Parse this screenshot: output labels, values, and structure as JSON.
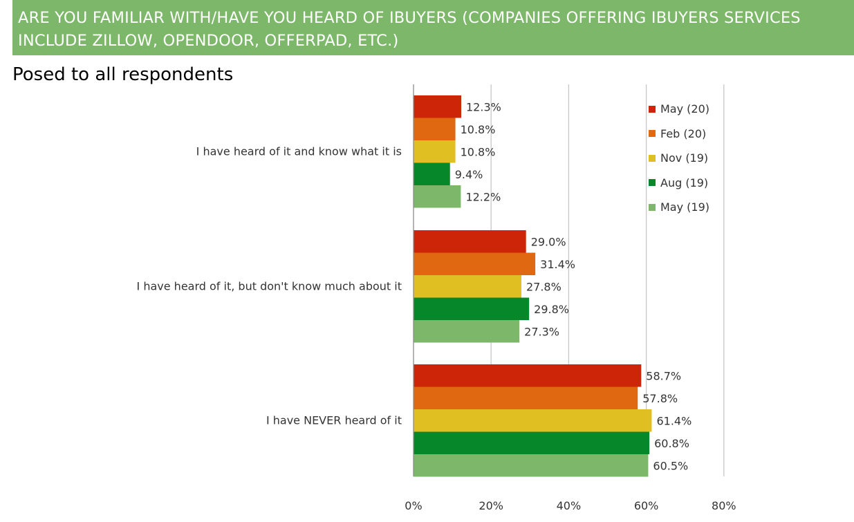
{
  "header": {
    "line1": "ARE YOU FAMILIAR WITH/HAVE YOU HEARD OF IBUYERS (COMPANIES OFFERING IBUYERS SERVICES",
    "line2": "INCLUDE ZILLOW, OPENDOOR, OFFERPAD, ETC.)",
    "background": "#7db86a"
  },
  "subtitle": "Posed to all respondents",
  "chart_data": {
    "type": "bar",
    "orientation": "horizontal",
    "categories": [
      "I have heard of it and know what it is",
      "I have heard of it, but don't know much about it",
      "I have NEVER heard of it"
    ],
    "series": [
      {
        "name": "May (20)",
        "color": "#cc2508",
        "values": [
          12.3,
          29.0,
          58.7
        ]
      },
      {
        "name": "Feb (20)",
        "color": "#e06810",
        "values": [
          10.8,
          31.4,
          57.8
        ]
      },
      {
        "name": "Nov (19)",
        "color": "#dfbf22",
        "values": [
          10.8,
          27.8,
          61.4
        ]
      },
      {
        "name": "Aug (19)",
        "color": "#06872a",
        "values": [
          9.4,
          29.8,
          60.8
        ]
      },
      {
        "name": "May (19)",
        "color": "#7db86a",
        "values": [
          12.2,
          27.3,
          60.5
        ]
      }
    ],
    "x_ticks": [
      "0%",
      "20%",
      "40%",
      "60%",
      "80%"
    ],
    "xlim": [
      0,
      80
    ],
    "value_suffix": "%",
    "gridlines": true,
    "legend_position": "top-right"
  }
}
